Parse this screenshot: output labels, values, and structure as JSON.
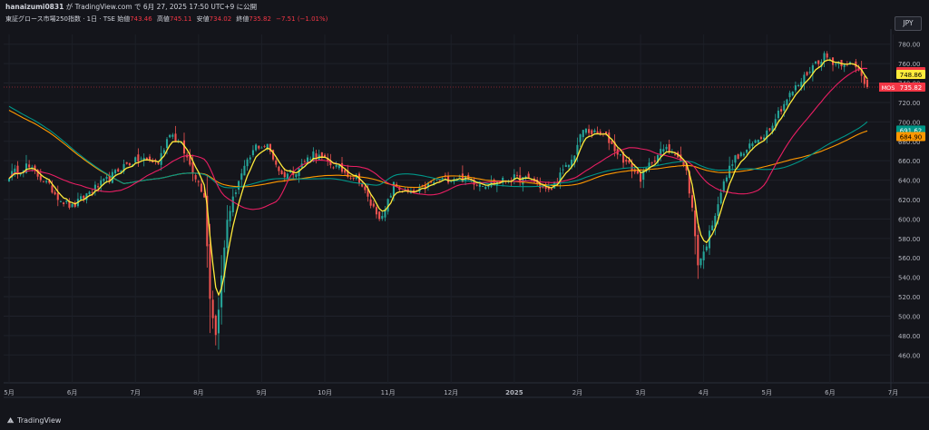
{
  "header": {
    "user": "hanaizumi0831",
    "rest": " が TradingView.com で 6月 27, 2025 17:50 UTC+9 に公開"
  },
  "legend": {
    "symbol": "東証グロース市場250指数 · 1日 · TSE",
    "open_label": "始値",
    "open": "743.46",
    "high_label": "高値",
    "high": "745.11",
    "low_label": "安値",
    "low": "734.02",
    "close_label": "終値",
    "close": "735.82",
    "change": "−7.51 (−1.01%)"
  },
  "currency_button": "JPY",
  "footer": {
    "brand": "TradingView"
  },
  "colors": {
    "up": "#26a69a",
    "down": "#ef5350",
    "ma_yellow": "#ffeb3b",
    "ma_pink": "#e91e63",
    "ma_teal": "#009688",
    "ma_orange": "#ff9800",
    "price_tag": "#f23645"
  },
  "price_tags": [
    {
      "value": "751.66",
      "color": "#f23645",
      "text_color": "#ffffff"
    },
    {
      "value": "748.86",
      "color": "#ffeb3b",
      "text_color": "#000000"
    },
    {
      "value": "735.82",
      "color": "#f23645",
      "text_color": "#ffffff",
      "prefix": "MOS"
    },
    {
      "value": "691.62",
      "color": "#009688",
      "text_color": "#ffffff"
    },
    {
      "value": "684.90",
      "color": "#ff9800",
      "text_color": "#000000"
    }
  ],
  "chart_data": {
    "type": "candlestick",
    "ylim": [
      450,
      790
    ],
    "y_ticks": [
      780,
      760,
      740,
      720,
      700,
      680,
      660,
      640,
      620,
      600,
      580,
      560,
      540,
      520,
      500,
      480,
      460
    ],
    "x_labels": [
      "5月",
      "6月",
      "7月",
      "8月",
      "9月",
      "10月",
      "11月",
      "12月",
      "2025",
      "2月",
      "3月",
      "4月",
      "5月",
      "6月",
      "7月"
    ],
    "x_label_day": [
      0,
      22,
      44,
      66,
      88,
      110,
      132,
      154,
      176,
      198,
      220,
      242,
      264,
      286,
      308
    ],
    "n_days": 300,
    "close_anchors": [
      [
        0,
        645
      ],
      [
        6,
        655
      ],
      [
        12,
        640
      ],
      [
        18,
        620
      ],
      [
        22,
        612
      ],
      [
        28,
        628
      ],
      [
        34,
        640
      ],
      [
        40,
        655
      ],
      [
        46,
        662
      ],
      [
        52,
        658
      ],
      [
        56,
        690
      ],
      [
        60,
        675
      ],
      [
        64,
        650
      ],
      [
        68,
        625
      ],
      [
        70,
        520
      ],
      [
        72,
        480
      ],
      [
        74,
        540
      ],
      [
        76,
        600
      ],
      [
        80,
        640
      ],
      [
        86,
        675
      ],
      [
        90,
        675
      ],
      [
        95,
        645
      ],
      [
        100,
        650
      ],
      [
        106,
        668
      ],
      [
        110,
        660
      ],
      [
        116,
        650
      ],
      [
        122,
        640
      ],
      [
        126,
        615
      ],
      [
        130,
        600
      ],
      [
        134,
        635
      ],
      [
        140,
        625
      ],
      [
        146,
        635
      ],
      [
        150,
        640
      ],
      [
        156,
        643
      ],
      [
        160,
        640
      ],
      [
        166,
        636
      ],
      [
        170,
        638
      ],
      [
        176,
        642
      ],
      [
        182,
        640
      ],
      [
        188,
        628
      ],
      [
        192,
        645
      ],
      [
        196,
        660
      ],
      [
        200,
        692
      ],
      [
        204,
        688
      ],
      [
        208,
        685
      ],
      [
        212,
        668
      ],
      [
        216,
        655
      ],
      [
        220,
        642
      ],
      [
        224,
        660
      ],
      [
        228,
        672
      ],
      [
        232,
        670
      ],
      [
        236,
        648
      ],
      [
        238,
        610
      ],
      [
        240,
        555
      ],
      [
        242,
        565
      ],
      [
        244,
        585
      ],
      [
        248,
        628
      ],
      [
        252,
        660
      ],
      [
        256,
        668
      ],
      [
        260,
        680
      ],
      [
        264,
        690
      ],
      [
        268,
        710
      ],
      [
        272,
        728
      ],
      [
        276,
        742
      ],
      [
        280,
        758
      ],
      [
        284,
        768
      ],
      [
        288,
        760
      ],
      [
        292,
        762
      ],
      [
        296,
        752
      ],
      [
        299,
        736
      ]
    ],
    "last": {
      "open": 743.46,
      "high": 745.11,
      "low": 734.02,
      "close": 735.82
    }
  }
}
